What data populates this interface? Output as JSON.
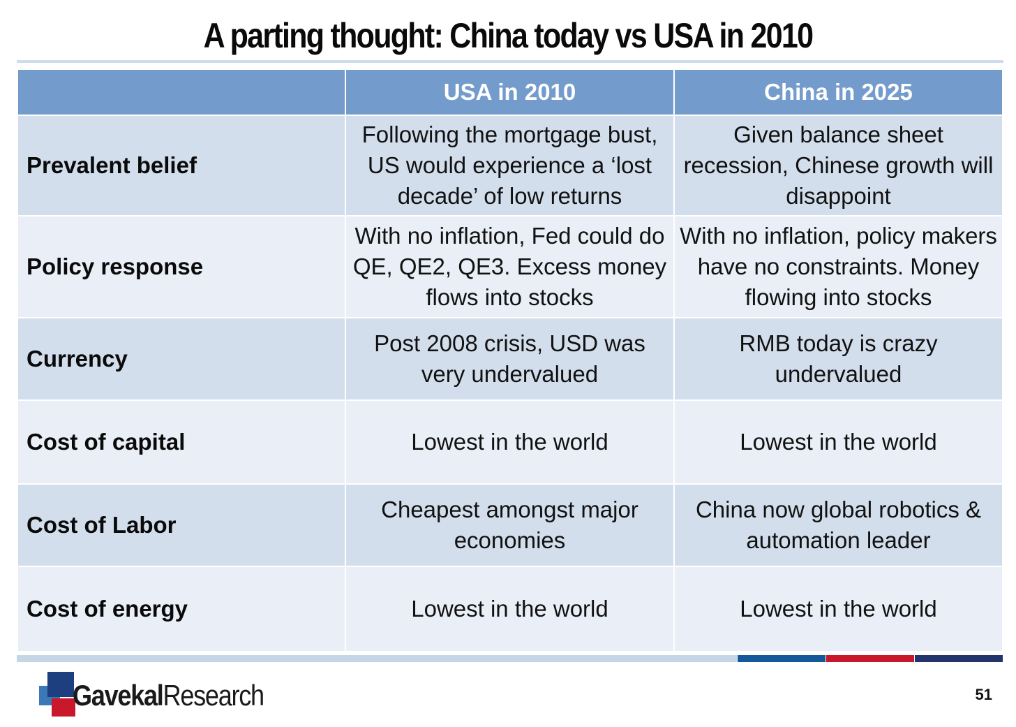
{
  "title": "A parting thought: China today vs USA in 2010",
  "table": {
    "headers": [
      "",
      "USA in 2010",
      "China in 2025"
    ],
    "rows": [
      {
        "label": "Prevalent belief",
        "usa": "Following the mortgage bust, US would experience a ‘lost decade’ of low returns",
        "china": "Given balance sheet recession, Chinese growth will disappoint"
      },
      {
        "label": "Policy response",
        "usa": "With no inflation, Fed could do QE, QE2, QE3. Excess money flows into stocks",
        "china": "With no inflation, policy makers have no constraints. Money flowing into stocks"
      },
      {
        "label": "Currency",
        "usa": "Post 2008 crisis, USD was very undervalued",
        "china": "RMB today is crazy undervalued"
      },
      {
        "label": "Cost of capital",
        "usa": "Lowest in the world",
        "china": "Lowest in the world"
      },
      {
        "label": "Cost of Labor",
        "usa": "Cheapest amongst major economies",
        "china": "China now global robotics & automation leader"
      },
      {
        "label": "Cost of energy",
        "usa": "Lowest in the world",
        "china": "Lowest in the world"
      }
    ]
  },
  "footer": {
    "logo_part1": "Gavekal",
    "logo_part2": "Research",
    "page_number": "51"
  },
  "colors": {
    "header_bg": "#739ccd",
    "row_dark": "#d3deec",
    "row_light": "#e9eef7",
    "accent_blue": "#12589a",
    "accent_red": "#c9172c",
    "accent_navy": "#22346b"
  }
}
